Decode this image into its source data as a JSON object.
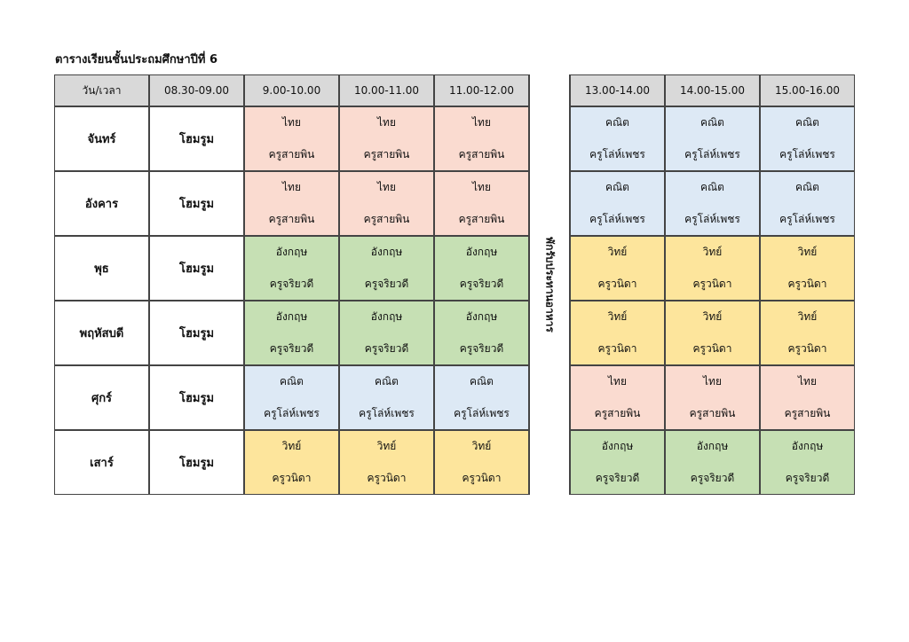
{
  "title": "ตารางเรียนชั้นประถมศึกษาปีที่ 6",
  "header": [
    "วัน/เวลา",
    "08.30-09.00",
    "9.00-10.00",
    "10.00-11.00",
    "11.00-12.00",
    "13.00-14.00",
    "14.00-15.00",
    "15.00-16.00"
  ],
  "lunch_label": "พักรับประทานอาหาร",
  "colors": {
    "thai": "#fadbd0",
    "math": "#dde9f5",
    "english": "#c6e0b4",
    "science": "#fde59c",
    "header": "#d9d9d9"
  },
  "rows": [
    {
      "day": "จันทร์",
      "homeroom": "โฮมรูม",
      "morning": [
        {
          "subject": "ไทย",
          "teacher": "ครูสายพิน",
          "color": "thai"
        },
        {
          "subject": "ไทย",
          "teacher": "ครูสายพิน",
          "color": "thai"
        },
        {
          "subject": "ไทย",
          "teacher": "ครูสายพิน",
          "color": "thai"
        }
      ],
      "afternoon": [
        {
          "subject": "คณิต",
          "teacher": "ครูโล่ห์เพชร",
          "color": "math"
        },
        {
          "subject": "คณิต",
          "teacher": "ครูโล่ห์เพชร",
          "color": "math"
        },
        {
          "subject": "คณิต",
          "teacher": "ครูโล่ห์เพชร",
          "color": "math"
        }
      ]
    },
    {
      "day": "อังคาร",
      "homeroom": "โฮมรูม",
      "morning": [
        {
          "subject": "ไทย",
          "teacher": "ครูสายพิน",
          "color": "thai"
        },
        {
          "subject": "ไทย",
          "teacher": "ครูสายพิน",
          "color": "thai"
        },
        {
          "subject": "ไทย",
          "teacher": "ครูสายพิน",
          "color": "thai"
        }
      ],
      "afternoon": [
        {
          "subject": "คณิต",
          "teacher": "ครูโล่ห์เพชร",
          "color": "math"
        },
        {
          "subject": "คณิต",
          "teacher": "ครูโล่ห์เพชร",
          "color": "math"
        },
        {
          "subject": "คณิต",
          "teacher": "ครูโล่ห์เพชร",
          "color": "math"
        }
      ]
    },
    {
      "day": "พุธ",
      "homeroom": "โฮมรูม",
      "morning": [
        {
          "subject": "อังกฤษ",
          "teacher": "ครูจริยวดี",
          "color": "english"
        },
        {
          "subject": "อังกฤษ",
          "teacher": "ครูจริยวดี",
          "color": "english"
        },
        {
          "subject": "อังกฤษ",
          "teacher": "ครูจริยวดี",
          "color": "english"
        }
      ],
      "afternoon": [
        {
          "subject": "วิทย์",
          "teacher": "ครูวนิดา",
          "color": "science"
        },
        {
          "subject": "วิทย์",
          "teacher": "ครูวนิดา",
          "color": "science"
        },
        {
          "subject": "วิทย์",
          "teacher": "ครูวนิดา",
          "color": "science"
        }
      ]
    },
    {
      "day": "พฤหัสบดี",
      "homeroom": "โฮมรูม",
      "morning": [
        {
          "subject": "อังกฤษ",
          "teacher": "ครูจริยวดี",
          "color": "english"
        },
        {
          "subject": "อังกฤษ",
          "teacher": "ครูจริยวดี",
          "color": "english"
        },
        {
          "subject": "อังกฤษ",
          "teacher": "ครูจริยวดี",
          "color": "english"
        }
      ],
      "afternoon": [
        {
          "subject": "วิทย์",
          "teacher": "ครูวนิดา",
          "color": "science"
        },
        {
          "subject": "วิทย์",
          "teacher": "ครูวนิดา",
          "color": "science"
        },
        {
          "subject": "วิทย์",
          "teacher": "ครูวนิดา",
          "color": "science"
        }
      ]
    },
    {
      "day": "ศุกร์",
      "homeroom": "โฮมรูม",
      "morning": [
        {
          "subject": "คณิต",
          "teacher": "ครูโล่ห์เพชร",
          "color": "math"
        },
        {
          "subject": "คณิต",
          "teacher": "ครูโล่ห์เพชร",
          "color": "math"
        },
        {
          "subject": "คณิต",
          "teacher": "ครูโล่ห์เพชร",
          "color": "math"
        }
      ],
      "afternoon": [
        {
          "subject": "ไทย",
          "teacher": "ครูสายพิน",
          "color": "thai"
        },
        {
          "subject": "ไทย",
          "teacher": "ครูสายพิน",
          "color": "thai"
        },
        {
          "subject": "ไทย",
          "teacher": "ครูสายพิน",
          "color": "thai"
        }
      ]
    },
    {
      "day": "เสาร์",
      "homeroom": "โฮมรูม",
      "morning": [
        {
          "subject": "วิทย์",
          "teacher": "ครูวนิดา",
          "color": "science"
        },
        {
          "subject": "วิทย์",
          "teacher": "ครูวนิดา",
          "color": "science"
        },
        {
          "subject": "วิทย์",
          "teacher": "ครูวนิดา",
          "color": "science"
        }
      ],
      "afternoon": [
        {
          "subject": "อังกฤษ",
          "teacher": "ครูจริยวดี",
          "color": "english"
        },
        {
          "subject": "อังกฤษ",
          "teacher": "ครูจริยวดี",
          "color": "english"
        },
        {
          "subject": "อังกฤษ",
          "teacher": "ครูจริยวดี",
          "color": "english"
        }
      ]
    }
  ]
}
